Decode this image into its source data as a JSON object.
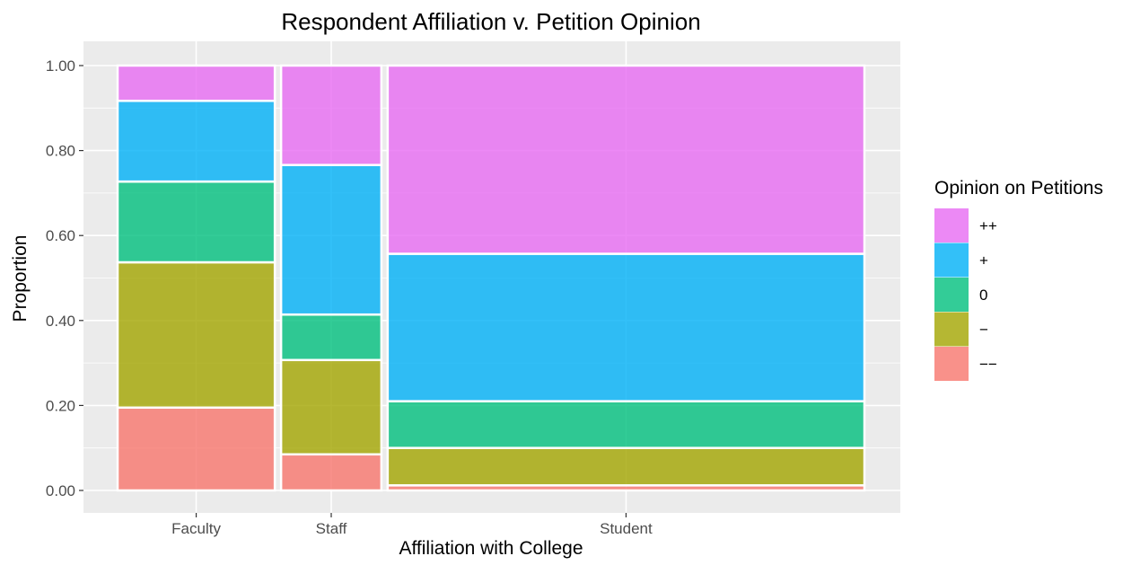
{
  "chart_data": {
    "type": "mosaic",
    "title": "Respondent Affiliation v. Petition Opinion",
    "xlabel": "Affiliation with College",
    "ylabel": "Proportion",
    "ylim": [
      0,
      1
    ],
    "y_ticks": [
      "0.00",
      "0.20",
      "0.40",
      "0.60",
      "0.80",
      "1.00"
    ],
    "grid": true,
    "legend_position": "right",
    "legend_title": "Opinion on Petitions",
    "categories": [
      "Faculty",
      "Staff",
      "Student"
    ],
    "category_widths": [
      0.185,
      0.118,
      0.561
    ],
    "levels": [
      "--",
      "-",
      "0",
      "+",
      "++"
    ],
    "level_labels": [
      "−−",
      "−",
      "0",
      "+",
      "++"
    ],
    "colors": {
      "--": "#F8766D",
      "-": "#A3A500",
      "0": "#00BF7D",
      "+": "#00B0F6",
      "++": "#E76BF3"
    },
    "series": [
      {
        "name": "−−",
        "values": [
          0.195,
          0.085,
          0.012
        ]
      },
      {
        "name": "−",
        "values": [
          0.342,
          0.222,
          0.088
        ]
      },
      {
        "name": "0",
        "values": [
          0.19,
          0.107,
          0.11
        ]
      },
      {
        "name": "+",
        "values": [
          0.19,
          0.352,
          0.347
        ]
      },
      {
        "name": "++",
        "values": [
          0.083,
          0.234,
          0.443
        ]
      }
    ]
  }
}
